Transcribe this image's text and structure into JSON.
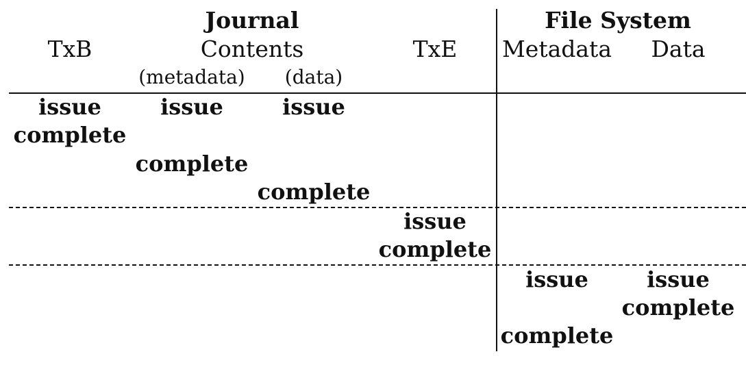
{
  "headers": {
    "journal": "Journal",
    "file_system": "File System",
    "txb": "TxB",
    "contents": "Contents",
    "txe": "TxE",
    "metadata": "Metadata",
    "data": "Data",
    "contents_metadata": "(metadata)",
    "contents_data": "(data)"
  },
  "events": {
    "txb_issue": "issue",
    "txb_complete": "complete",
    "meta_issue": "issue",
    "meta_complete": "complete",
    "data_issue": "issue",
    "data_complete": "complete",
    "txe_issue": "issue",
    "txe_complete": "complete",
    "fs_meta_issue": "issue",
    "fs_data_issue": "issue",
    "fs_data_complete": "complete",
    "fs_meta_complete": "complete"
  }
}
